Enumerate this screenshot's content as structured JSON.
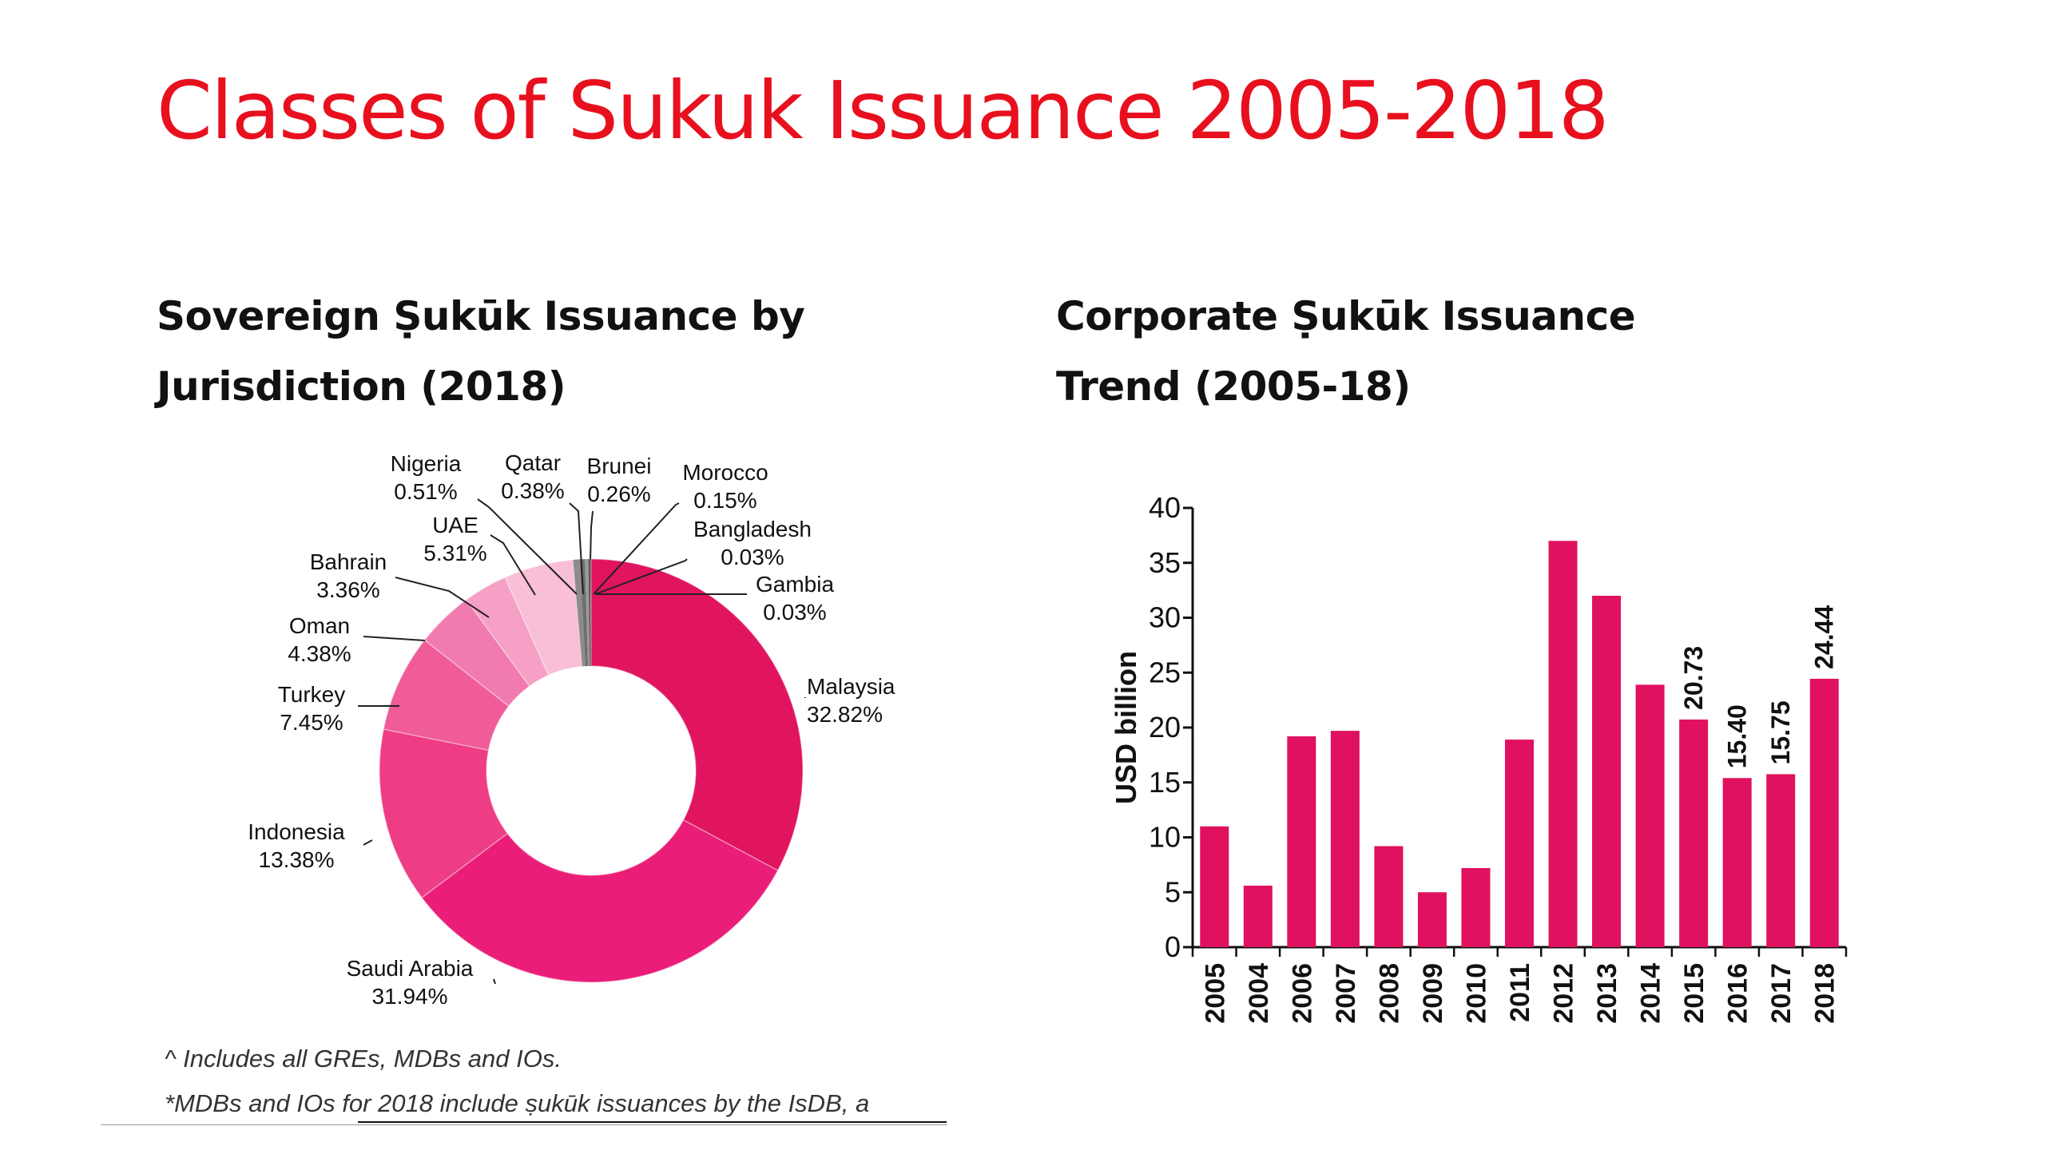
{
  "slide": {
    "title": "Classes of Sukuk Issuance 2005-2018",
    "left_title_line1": "Sovereign Ṣukūk Issuance by",
    "left_title_line2": "Jurisdiction (2018)",
    "right_title_line1": "Corporate Ṣukūk Issuance",
    "right_title_line2": "Trend (2005-18)",
    "footnote1": "^ Includes all GREs, MDBs and IOs.",
    "footnote2": "*MDBs and IOs for 2018 include ṣukūk issuances by the IsDB, a"
  },
  "colors": {
    "title": "#e8101e",
    "bar": "#e0115f"
  },
  "chart_data": [
    {
      "type": "pie",
      "title": "Sovereign Ṣukūk Issuance by Jurisdiction (2018)",
      "donut": true,
      "slices": [
        {
          "name": "Malaysia",
          "label": "32.82%",
          "value": 32.82,
          "color": "#e0145f"
        },
        {
          "name": "Saudi Arabia",
          "label": "31.94%",
          "value": 31.94,
          "color": "#ea1e78"
        },
        {
          "name": "Indonesia",
          "label": "13.38%",
          "value": 13.38,
          "color": "#ee3d85"
        },
        {
          "name": "Turkey",
          "label": "7.45%",
          "value": 7.45,
          "color": "#ef5c98"
        },
        {
          "name": "Oman",
          "label": "4.38%",
          "value": 4.38,
          "color": "#f17ab0"
        },
        {
          "name": "Bahrain",
          "label": "3.36%",
          "value": 3.36,
          "color": "#f5a0c4"
        },
        {
          "name": "UAE",
          "label": "5.31%",
          "value": 5.31,
          "color": "#f8bfd7"
        },
        {
          "name": "Nigeria",
          "label": "0.51%",
          "value": 0.51,
          "color": "#8c8c8c"
        },
        {
          "name": "Qatar",
          "label": "0.38%",
          "value": 0.38,
          "color": "#6e6e6e"
        },
        {
          "name": "Brunei",
          "label": "0.26%",
          "value": 0.26,
          "color": "#9a9a9a"
        },
        {
          "name": "Morocco",
          "label": "0.15%",
          "value": 0.15,
          "color": "#5a5a5a"
        },
        {
          "name": "Bangladesh",
          "label": "0.03%",
          "value": 0.03,
          "color": "#7a7a7a"
        },
        {
          "name": "Gambia",
          "label": "0.03%",
          "value": 0.03,
          "color": "#8a8a8a"
        }
      ]
    },
    {
      "type": "bar",
      "title": "Corporate Ṣukūk Issuance Trend (2005-18)",
      "ylabel": "USD billion",
      "ylim": [
        0,
        40
      ],
      "yticks": [
        0,
        5,
        10,
        15,
        20,
        25,
        30,
        35,
        40
      ],
      "categories": [
        "2005",
        "2004",
        "2006",
        "2007",
        "2008",
        "2009",
        "2010",
        "2011",
        "2012",
        "2013",
        "2014",
        "2015",
        "2016",
        "2017",
        "2018"
      ],
      "values": [
        11.0,
        5.6,
        19.2,
        19.7,
        9.2,
        5.0,
        7.2,
        18.9,
        37.0,
        32.0,
        23.9,
        20.73,
        15.4,
        15.75,
        24.44
      ],
      "data_labels": [
        "",
        "",
        "",
        "",
        "",
        "",
        "",
        "",
        "",
        "",
        "",
        "20.73",
        "15.40",
        "15.75",
        "24.44"
      ]
    }
  ]
}
